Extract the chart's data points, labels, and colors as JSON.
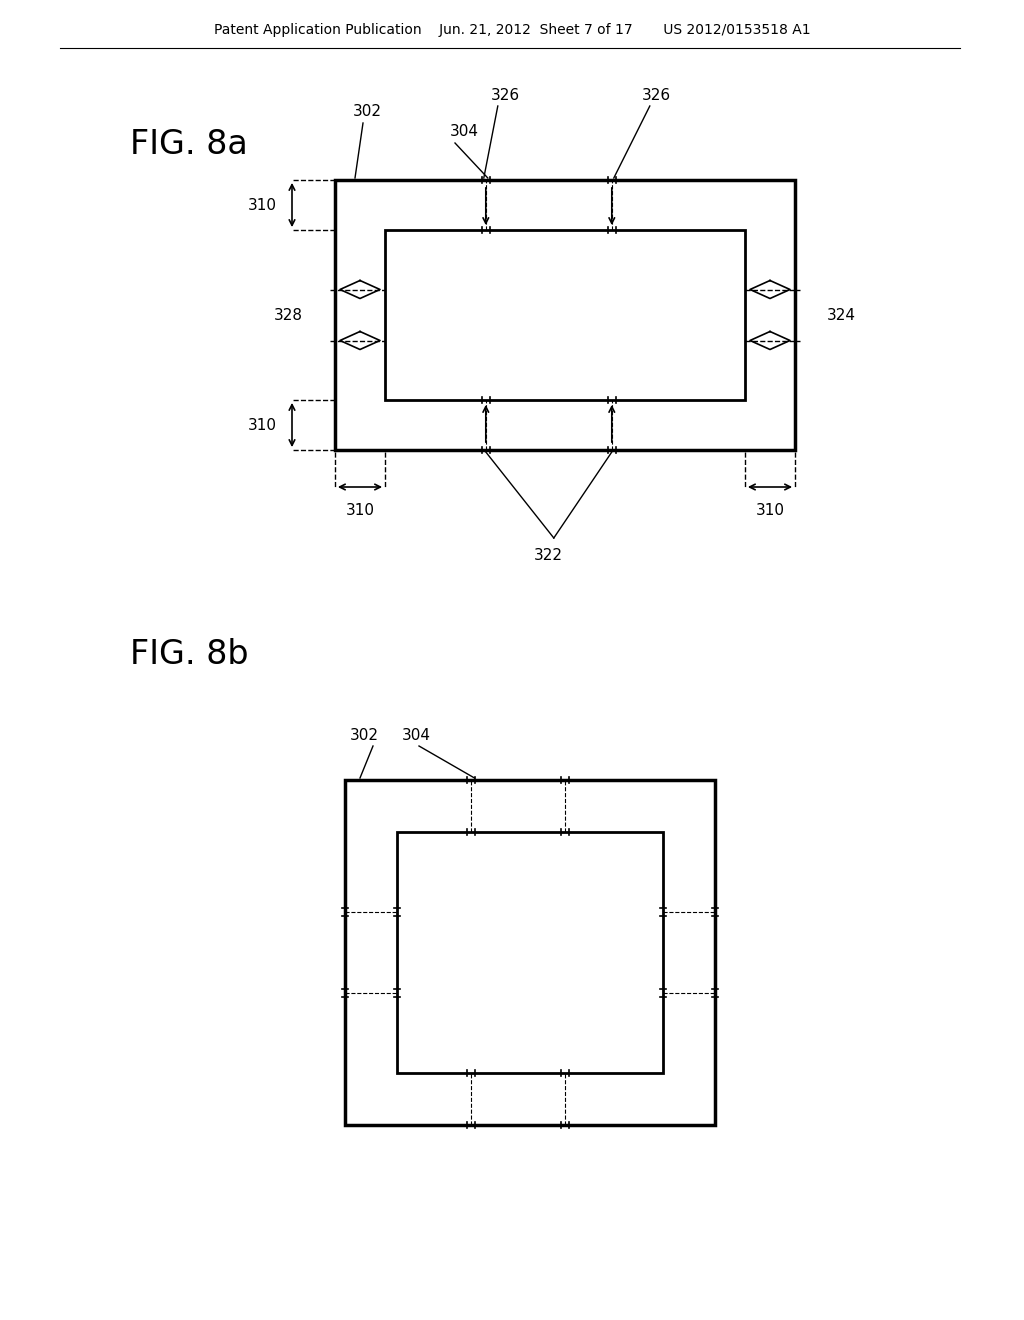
{
  "bg_color": "#ffffff",
  "header_text": "Patent Application Publication    Jun. 21, 2012  Sheet 7 of 17       US 2012/0153518 A1",
  "fig8a_label": "FIG. 8a",
  "fig8b_label": "FIG. 8b"
}
